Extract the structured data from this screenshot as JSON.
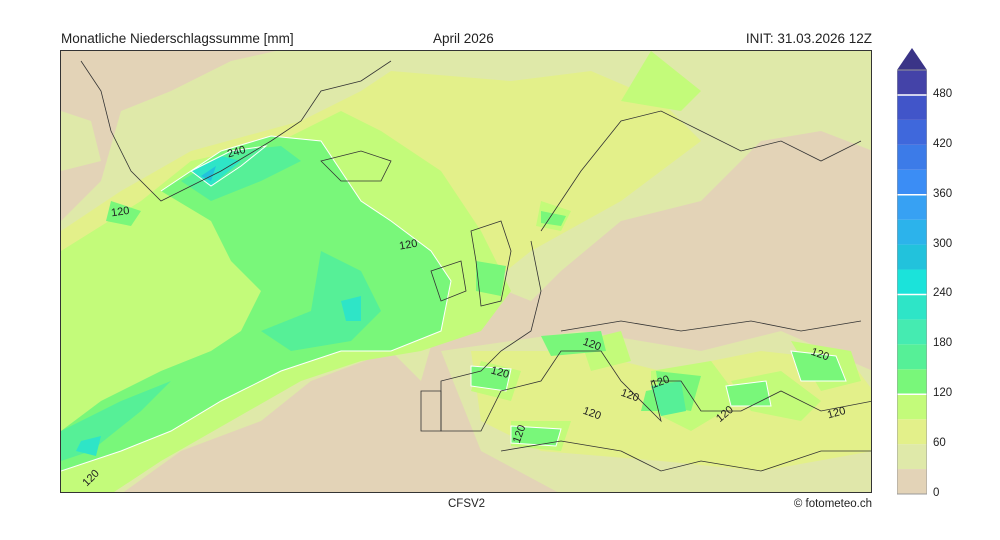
{
  "header": {
    "title": "Monatliche Niederschlagssumme [mm]",
    "period": "April 2026",
    "init": "INIT: 31.03.2026 12Z"
  },
  "footer": {
    "model": "CFSV2",
    "credit": "© fotometeo.ch"
  },
  "colorbar": {
    "unit": "mm",
    "levels": [
      0,
      30,
      60,
      90,
      120,
      150,
      180,
      210,
      240,
      270,
      300,
      330,
      360,
      390,
      420,
      450,
      480,
      510
    ],
    "colors": [
      "#e3d3b7",
      "#dfe9a9",
      "#e3f08a",
      "#c3fb7a",
      "#79f77a",
      "#56f097",
      "#45ebb1",
      "#2ee5c7",
      "#1be3da",
      "#22c2dc",
      "#2cb3eb",
      "#37a1f3",
      "#3b8df5",
      "#3c7be8",
      "#3f68dc",
      "#4155c9",
      "#4443a8"
    ],
    "extend_color": "#3a3487",
    "tick_labels": [
      "0",
      "60",
      "120",
      "180",
      "240",
      "300",
      "360",
      "420",
      "480"
    ]
  },
  "map": {
    "contour_labels": [
      "240",
      "120",
      "120",
      "120",
      "120",
      "120",
      "120",
      "120",
      "120",
      "120",
      "120",
      "120",
      "120",
      "120"
    ]
  }
}
